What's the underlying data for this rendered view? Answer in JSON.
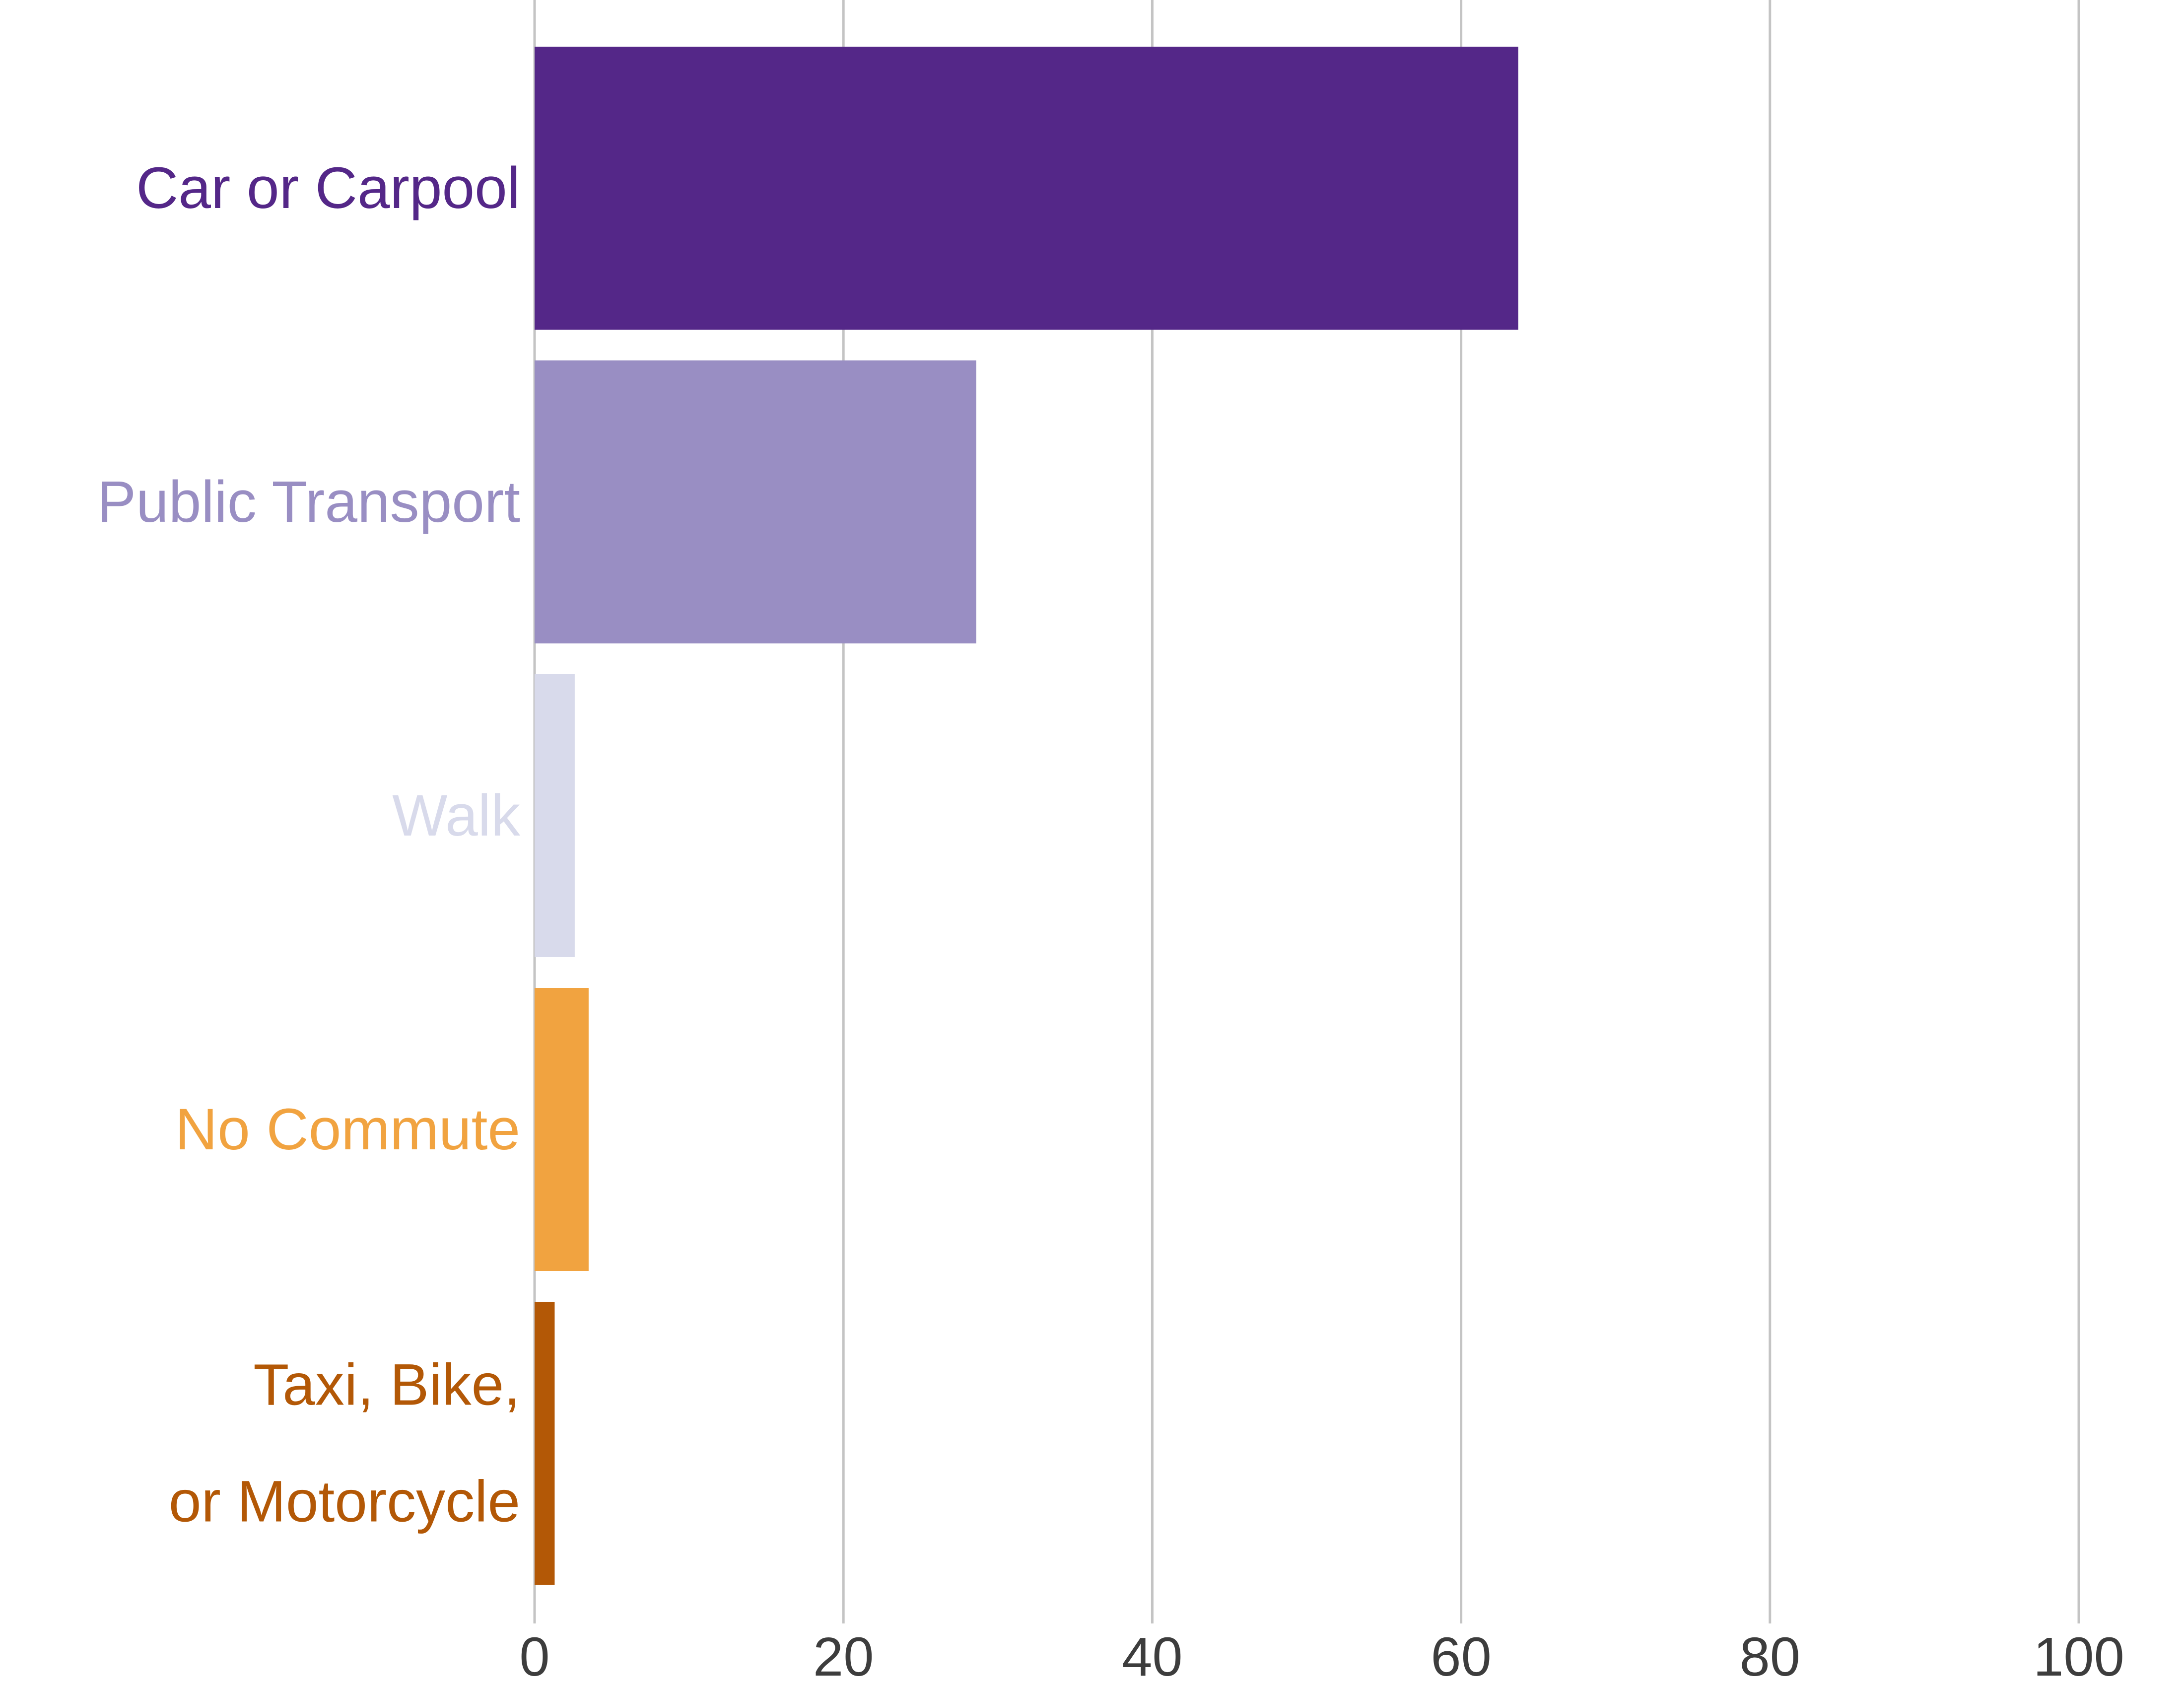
{
  "chart_data": {
    "type": "bar",
    "orientation": "horizontal",
    "categories": [
      "Car or Carpool",
      "Public Transport",
      "Walk",
      "No Commute",
      "Taxi, Bike, or Motorcycle"
    ],
    "category_lines": [
      [
        "Car or Carpool"
      ],
      [
        "Public Transport"
      ],
      [
        "Walk"
      ],
      [
        "No Commute"
      ],
      [
        "Taxi, Bike,",
        "or Motorcycle"
      ]
    ],
    "values": [
      63.7,
      28.6,
      2.6,
      3.5,
      1.3
    ],
    "colors": [
      "#542788",
      "#998ec3",
      "#d8daeb",
      "#f1a340",
      "#b35806"
    ],
    "title": "",
    "xlabel": "",
    "ylabel": "",
    "xlim": [
      0,
      100
    ],
    "xticks": [
      0,
      20,
      40,
      60,
      80,
      100
    ],
    "xtick_labels": [
      "0",
      "20",
      "40",
      "60",
      "80",
      "100"
    ],
    "grid": "vertical",
    "legend": "none"
  }
}
